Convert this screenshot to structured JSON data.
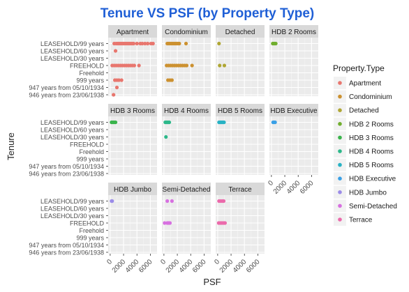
{
  "chart_data": {
    "type": "scatter",
    "title": "Tenure VS PSF (by Property Type)",
    "xlabel": "PSF",
    "ylabel": "Tenure",
    "xlim": [
      -300,
      7000
    ],
    "x_ticks": [
      0,
      2000,
      4000,
      6000
    ],
    "x_tick_labels": [
      "0",
      "2000",
      "4000",
      "6000"
    ],
    "y_categories": [
      "LEASEHOLD/99 years",
      "LEASEHOLD/60 years",
      "LEASEHOLD/30 years",
      "FREEHOLD",
      "Freehold",
      "999 years",
      "947 years from 05/10/1934",
      "946 years from 23/06/1938"
    ],
    "grid": true,
    "legend_title": "Property.Type",
    "legend_position": "right",
    "facet_layout": {
      "columns": 4,
      "rows": 3
    },
    "facets": [
      {
        "name": "Apartment",
        "color": "#E8766E",
        "points": [
          {
            "tenure": "LEASEHOLD/99 years",
            "psf": [
              600,
              900,
              1100,
              1300,
              1500,
              1700,
              1900,
              2100,
              2300,
              2500,
              2700,
              2900,
              3100,
              3300,
              3500,
              4000,
              4500,
              4800,
              5200,
              5600,
              6100,
              6400
            ]
          },
          {
            "tenure": "LEASEHOLD/60 years",
            "psf": [
              800
            ]
          },
          {
            "tenure": "FREEHOLD",
            "psf": [
              300,
              600,
              900,
              1200,
              1500,
              1800,
              2100,
              2400,
              2700,
              3000,
              3300,
              3600,
              4300
            ]
          },
          {
            "tenure": "999 years",
            "psf": [
              700,
              1000,
              1300,
              1700
            ]
          },
          {
            "tenure": "947 years from 05/10/1934",
            "psf": [
              1000
            ]
          },
          {
            "tenure": "946 years from 23/06/1938",
            "psf": [
              500
            ]
          }
        ]
      },
      {
        "name": "Condominium",
        "color": "#CC9130",
        "points": [
          {
            "tenure": "LEASEHOLD/99 years",
            "psf": [
              500,
              700,
              900,
              1100,
              1300,
              1500,
              1700,
              1900,
              2100,
              2300,
              3300
            ]
          },
          {
            "tenure": "FREEHOLD",
            "psf": [
              400,
              700,
              1000,
              1300,
              1600,
              1900,
              2200,
              2500,
              2800,
              3100,
              3400,
              4200
            ]
          },
          {
            "tenure": "999 years",
            "psf": [
              600,
              900,
              1200
            ]
          }
        ]
      },
      {
        "name": "Detached",
        "color": "#AFA634",
        "points": [
          {
            "tenure": "LEASEHOLD/99 years",
            "psf": [
              200
            ]
          },
          {
            "tenure": "FREEHOLD",
            "psf": [
              300,
              1000
            ]
          }
        ]
      },
      {
        "name": "HDB 2 Rooms",
        "color": "#70AE2E",
        "points": [
          {
            "tenure": "LEASEHOLD/99 years",
            "psf": [
              200,
              350,
              500,
              650
            ]
          }
        ]
      },
      {
        "name": "HDB 3 Rooms",
        "color": "#3AB44C",
        "points": [
          {
            "tenure": "LEASEHOLD/99 years",
            "psf": [
              200,
              350,
              500,
              650,
              800
            ]
          }
        ]
      },
      {
        "name": "HDB 4 Rooms",
        "color": "#2DB88A",
        "points": [
          {
            "tenure": "LEASEHOLD/99 years",
            "psf": [
              200,
              350,
              500,
              650,
              800
            ]
          },
          {
            "tenure": "LEASEHOLD/30 years",
            "psf": [
              300
            ]
          }
        ]
      },
      {
        "name": "HDB 5 Rooms",
        "color": "#28B2C4",
        "points": [
          {
            "tenure": "LEASEHOLD/99 years",
            "psf": [
              200,
              350,
              500,
              650,
              800,
              950
            ]
          }
        ]
      },
      {
        "name": "HDB Executive",
        "color": "#3AA0E6",
        "points": [
          {
            "tenure": "LEASEHOLD/99 years",
            "psf": [
              250,
              400,
              550
            ]
          }
        ]
      },
      {
        "name": "HDB Jumbo",
        "color": "#9B8CE8",
        "points": [
          {
            "tenure": "LEASEHOLD/99 years",
            "psf": [
              200,
              300
            ]
          }
        ]
      },
      {
        "name": "Semi-Detached",
        "color": "#D770E0",
        "points": [
          {
            "tenure": "LEASEHOLD/99 years",
            "psf": [
              500,
              1200
            ]
          },
          {
            "tenure": "FREEHOLD",
            "psf": [
              100,
              500,
              700,
              900
            ]
          }
        ]
      },
      {
        "name": "Terrace",
        "color": "#EB6AAB",
        "points": [
          {
            "tenure": "LEASEHOLD/99 years",
            "psf": [
              200,
              450,
              700,
              900
            ]
          },
          {
            "tenure": "FREEHOLD",
            "psf": [
              150,
              350,
              550,
              750,
              950,
              1100
            ]
          }
        ]
      }
    ],
    "legend": [
      {
        "label": "Apartment",
        "color": "#E8766E"
      },
      {
        "label": "Condominium",
        "color": "#CC9130"
      },
      {
        "label": "Detached",
        "color": "#AFA634"
      },
      {
        "label": "HDB 2 Rooms",
        "color": "#70AE2E"
      },
      {
        "label": "HDB 3 Rooms",
        "color": "#3AB44C"
      },
      {
        "label": "HDB 4 Rooms",
        "color": "#2DB88A"
      },
      {
        "label": "HDB 5 Rooms",
        "color": "#28B2C4"
      },
      {
        "label": "HDB Executive",
        "color": "#3AA0E6"
      },
      {
        "label": "HDB Jumbo",
        "color": "#9B8CE8"
      },
      {
        "label": "Semi-Detached",
        "color": "#D770E0"
      },
      {
        "label": "Terrace",
        "color": "#EB6AAB"
      }
    ],
    "title_color": "#1F5FD6"
  }
}
